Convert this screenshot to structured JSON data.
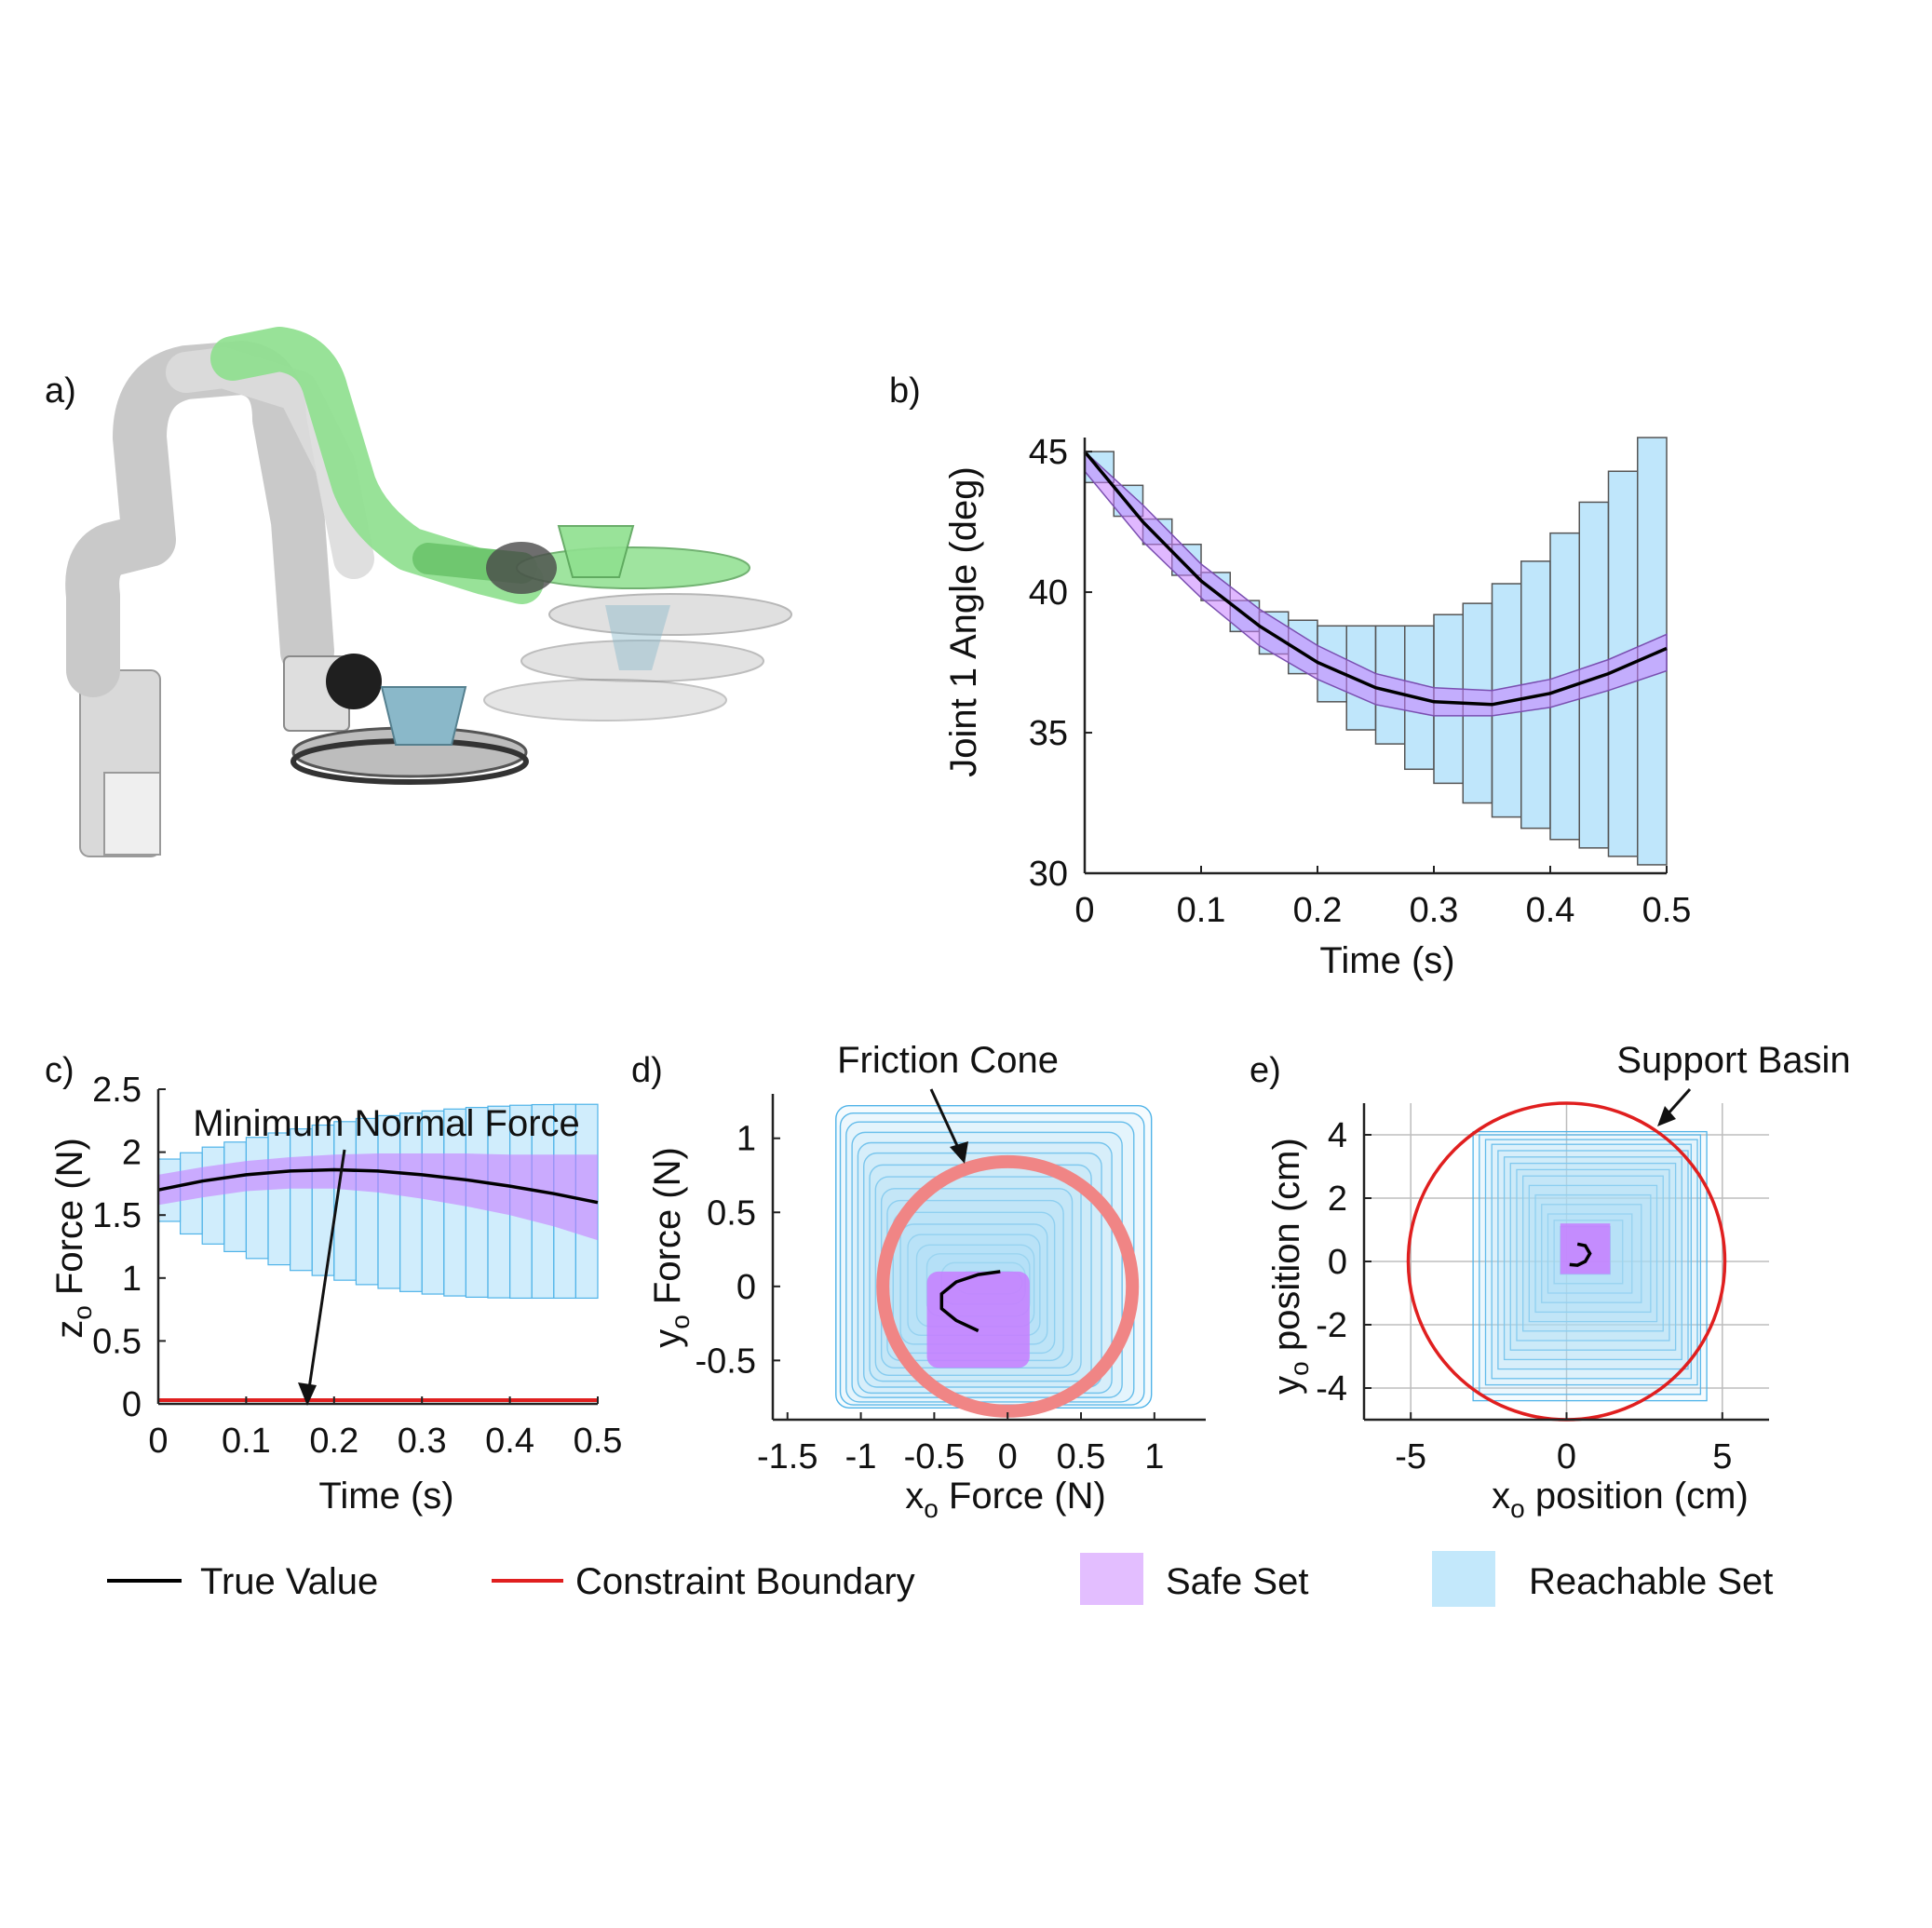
{
  "panel_labels": {
    "a": "a)",
    "b": "b)",
    "c": "c)",
    "d": "d)",
    "e": "e)"
  },
  "colors": {
    "true_value": "#000000",
    "constraint": "#e01f1f",
    "constraint_soft": "#f08585",
    "safe": "#c77dff",
    "reachable": "#a9defa",
    "reachable_edge": "#4fb3e8",
    "robot_gray": "#d4d4d4",
    "robot_green": "#8fe08f",
    "cup_blue": "#8ab8c9"
  },
  "legend": {
    "true_value": "True Value",
    "constraint": "Constraint Boundary",
    "safe": "Safe Set",
    "reachable": "Reachable Set"
  },
  "chart_data": [
    {
      "panel": "b",
      "type": "line",
      "xlabel": "Time (s)",
      "ylabel": "Joint 1 Angle (deg)",
      "xlim": [
        0,
        0.5
      ],
      "ylim": [
        30,
        45.5
      ],
      "xticks": [
        0,
        0.1,
        0.2,
        0.3,
        0.4,
        0.5
      ],
      "yticks": [
        30,
        35,
        40,
        45
      ],
      "true_value": {
        "x": [
          0,
          0.05,
          0.1,
          0.15,
          0.2,
          0.25,
          0.3,
          0.35,
          0.4,
          0.45,
          0.5
        ],
        "y": [
          45,
          42.5,
          40.4,
          38.8,
          37.5,
          36.6,
          36.1,
          36.0,
          36.4,
          37.1,
          38.0
        ]
      },
      "reachable_boxes": [
        {
          "t0": 0.0,
          "t1": 0.025,
          "lo": 43.9,
          "hi": 45.0
        },
        {
          "t0": 0.025,
          "t1": 0.05,
          "lo": 42.7,
          "hi": 43.8
        },
        {
          "t0": 0.05,
          "t1": 0.075,
          "lo": 41.7,
          "hi": 42.6
        },
        {
          "t0": 0.075,
          "t1": 0.1,
          "lo": 40.6,
          "hi": 41.7
        },
        {
          "t0": 0.1,
          "t1": 0.125,
          "lo": 39.7,
          "hi": 40.7
        },
        {
          "t0": 0.125,
          "t1": 0.15,
          "lo": 38.6,
          "hi": 39.7
        },
        {
          "t0": 0.15,
          "t1": 0.175,
          "lo": 37.8,
          "hi": 39.3
        },
        {
          "t0": 0.175,
          "t1": 0.2,
          "lo": 37.1,
          "hi": 39.0
        },
        {
          "t0": 0.2,
          "t1": 0.225,
          "lo": 36.1,
          "hi": 38.8
        },
        {
          "t0": 0.225,
          "t1": 0.25,
          "lo": 35.1,
          "hi": 38.8
        },
        {
          "t0": 0.25,
          "t1": 0.275,
          "lo": 34.6,
          "hi": 38.8
        },
        {
          "t0": 0.275,
          "t1": 0.3,
          "lo": 33.7,
          "hi": 38.8
        },
        {
          "t0": 0.3,
          "t1": 0.325,
          "lo": 33.2,
          "hi": 39.2
        },
        {
          "t0": 0.325,
          "t1": 0.35,
          "lo": 32.5,
          "hi": 39.6
        },
        {
          "t0": 0.35,
          "t1": 0.375,
          "lo": 32.0,
          "hi": 40.3
        },
        {
          "t0": 0.375,
          "t1": 0.4,
          "lo": 31.6,
          "hi": 41.1
        },
        {
          "t0": 0.4,
          "t1": 0.425,
          "lo": 31.2,
          "hi": 42.1
        },
        {
          "t0": 0.425,
          "t1": 0.45,
          "lo": 30.9,
          "hi": 43.2
        },
        {
          "t0": 0.45,
          "t1": 0.475,
          "lo": 30.6,
          "hi": 44.3
        },
        {
          "t0": 0.475,
          "t1": 0.5,
          "lo": 30.3,
          "hi": 45.5
        }
      ],
      "safe_band": {
        "x": [
          0,
          0.05,
          0.1,
          0.15,
          0.2,
          0.25,
          0.3,
          0.35,
          0.4,
          0.45,
          0.5
        ],
        "lo": [
          44.3,
          41.8,
          39.8,
          38.1,
          36.9,
          36.0,
          35.6,
          35.6,
          35.9,
          36.5,
          37.2
        ],
        "hi": [
          45.0,
          43.1,
          41.0,
          39.4,
          38.1,
          37.1,
          36.6,
          36.5,
          36.9,
          37.6,
          38.5
        ]
      }
    },
    {
      "panel": "c",
      "type": "line",
      "xlabel": "Time (s)",
      "ylabel": "z",
      "ylabel_sub": "o",
      "ylabel_rest": " Force (N)",
      "xlim": [
        0,
        0.5
      ],
      "ylim": [
        0,
        2.5
      ],
      "xticks": [
        0,
        0.1,
        0.2,
        0.3,
        0.4,
        0.5
      ],
      "yticks": [
        0,
        0.5,
        1,
        1.5,
        2,
        2.5
      ],
      "annotation": "Minimum Normal Force",
      "constraint_y": 0,
      "true_value": {
        "x": [
          0,
          0.05,
          0.1,
          0.15,
          0.2,
          0.25,
          0.3,
          0.35,
          0.4,
          0.45,
          0.5
        ],
        "y": [
          1.7,
          1.77,
          1.82,
          1.85,
          1.86,
          1.85,
          1.82,
          1.78,
          1.73,
          1.67,
          1.6
        ]
      },
      "reachable_envelope": {
        "x": [
          0,
          0.05,
          0.1,
          0.15,
          0.2,
          0.25,
          0.3,
          0.35,
          0.4,
          0.45,
          0.5
        ],
        "lo": [
          1.5,
          1.3,
          1.18,
          1.08,
          1.0,
          0.93,
          0.88,
          0.85,
          0.84,
          0.84,
          0.84
        ],
        "hi": [
          1.92,
          2.02,
          2.1,
          2.17,
          2.23,
          2.28,
          2.32,
          2.35,
          2.37,
          2.38,
          2.38
        ]
      },
      "safe_band": {
        "x": [
          0,
          0.05,
          0.1,
          0.15,
          0.2,
          0.25,
          0.3,
          0.35,
          0.4,
          0.45,
          0.5
        ],
        "lo": [
          1.58,
          1.64,
          1.69,
          1.71,
          1.71,
          1.68,
          1.63,
          1.57,
          1.5,
          1.41,
          1.3
        ],
        "hi": [
          1.82,
          1.88,
          1.93,
          1.96,
          1.98,
          1.99,
          1.99,
          1.99,
          1.98,
          1.98,
          1.98
        ]
      },
      "box_count": 20
    },
    {
      "panel": "d",
      "type": "scatter",
      "xlabel": "x",
      "xlabel_sub": "o",
      "xlabel_rest": " Force (N)",
      "ylabel": "y",
      "ylabel_sub": "o",
      "ylabel_rest": " Force (N)",
      "xlim": [
        -1.6,
        1.35
      ],
      "ylim": [
        -0.9,
        1.3
      ],
      "xticks": [
        -1.5,
        -1,
        -0.5,
        0,
        0.5,
        1
      ],
      "yticks": [
        -0.5,
        0,
        0.5,
        1
      ],
      "annotation": "Friction Cone",
      "constraint_circle": {
        "cx": 0,
        "cy": 0,
        "r": 0.85
      },
      "true_value": {
        "x": [
          -0.05,
          -0.2,
          -0.35,
          -0.45,
          -0.45,
          -0.35,
          -0.2
        ],
        "y": [
          0.1,
          0.08,
          0.03,
          -0.05,
          -0.15,
          -0.23,
          -0.3
        ]
      },
      "safe_region": {
        "x0": -0.55,
        "x1": 0.15,
        "y0": -0.55,
        "y1": 0.1
      },
      "reachable_sets": [
        {
          "x0": -0.35,
          "x1": 0.1,
          "y0": -0.05,
          "y1": 0.1
        },
        {
          "x0": -0.45,
          "x1": 0.12,
          "y0": -0.12,
          "y1": 0.16
        },
        {
          "x0": -0.55,
          "x1": 0.15,
          "y0": -0.2,
          "y1": 0.22
        },
        {
          "x0": -0.62,
          "x1": 0.18,
          "y0": -0.27,
          "y1": 0.28
        },
        {
          "x0": -0.68,
          "x1": 0.22,
          "y0": -0.33,
          "y1": 0.35
        },
        {
          "x0": -0.73,
          "x1": 0.27,
          "y0": -0.39,
          "y1": 0.42
        },
        {
          "x0": -0.78,
          "x1": 0.32,
          "y0": -0.45,
          "y1": 0.5
        },
        {
          "x0": -0.82,
          "x1": 0.38,
          "y0": -0.5,
          "y1": 0.58
        },
        {
          "x0": -0.86,
          "x1": 0.44,
          "y0": -0.55,
          "y1": 0.66
        },
        {
          "x0": -0.9,
          "x1": 0.5,
          "y0": -0.6,
          "y1": 0.74
        },
        {
          "x0": -0.94,
          "x1": 0.57,
          "y0": -0.64,
          "y1": 0.82
        },
        {
          "x0": -0.98,
          "x1": 0.64,
          "y0": -0.68,
          "y1": 0.9
        },
        {
          "x0": -1.02,
          "x1": 0.71,
          "y0": -0.72,
          "y1": 0.97
        },
        {
          "x0": -1.06,
          "x1": 0.78,
          "y0": -0.75,
          "y1": 1.04
        },
        {
          "x0": -1.1,
          "x1": 0.86,
          "y0": -0.78,
          "y1": 1.11
        },
        {
          "x0": -1.14,
          "x1": 0.93,
          "y0": -0.8,
          "y1": 1.17
        },
        {
          "x0": -1.17,
          "x1": 0.98,
          "y0": -0.82,
          "y1": 1.22
        }
      ]
    },
    {
      "panel": "e",
      "type": "scatter",
      "xlabel": "x",
      "xlabel_sub": "o",
      "xlabel_rest": " position (cm)",
      "ylabel": "y",
      "ylabel_sub": "o",
      "ylabel_rest": " position (cm)",
      "xlim": [
        -6.5,
        6.5
      ],
      "ylim": [
        -5,
        5
      ],
      "xticks": [
        -5,
        0,
        5
      ],
      "yticks": [
        -4,
        -2,
        0,
        2,
        4
      ],
      "grid": true,
      "annotation": "Support Basin",
      "constraint_circle": {
        "cx": 0,
        "cy": 0,
        "r": 5
      },
      "true_value": {
        "x": [
          0.1,
          0.35,
          0.6,
          0.75,
          0.6,
          0.35
        ],
        "y": [
          -0.1,
          -0.12,
          0.0,
          0.25,
          0.5,
          0.55
        ]
      },
      "safe_region": {
        "x0": -0.2,
        "x1": 1.4,
        "y0": -0.4,
        "y1": 1.2
      },
      "reachable_sets": [
        {
          "x0": -0.2,
          "x1": 1.4,
          "y0": -0.4,
          "y1": 1.1
        },
        {
          "x0": -0.4,
          "x1": 1.8,
          "y0": -0.7,
          "y1": 1.3
        },
        {
          "x0": -0.6,
          "x1": 2.1,
          "y0": -1.0,
          "y1": 1.5
        },
        {
          "x0": -0.8,
          "x1": 2.4,
          "y0": -1.3,
          "y1": 1.8
        },
        {
          "x0": -1.0,
          "x1": 2.7,
          "y0": -1.6,
          "y1": 2.1
        },
        {
          "x0": -1.2,
          "x1": 2.9,
          "y0": -1.9,
          "y1": 2.4
        },
        {
          "x0": -1.4,
          "x1": 3.1,
          "y0": -2.2,
          "y1": 2.7
        },
        {
          "x0": -1.6,
          "x1": 3.3,
          "y0": -2.5,
          "y1": 2.9
        },
        {
          "x0": -1.8,
          "x1": 3.5,
          "y0": -2.8,
          "y1": 3.1
        },
        {
          "x0": -2.0,
          "x1": 3.7,
          "y0": -3.1,
          "y1": 3.3
        },
        {
          "x0": -2.2,
          "x1": 3.9,
          "y0": -3.4,
          "y1": 3.5
        },
        {
          "x0": -2.4,
          "x1": 4.0,
          "y0": -3.7,
          "y1": 3.7
        },
        {
          "x0": -2.6,
          "x1": 4.2,
          "y0": -3.9,
          "y1": 3.85
        },
        {
          "x0": -2.8,
          "x1": 4.3,
          "y0": -4.2,
          "y1": 4.0
        },
        {
          "x0": -3.0,
          "x1": 4.5,
          "y0": -4.4,
          "y1": 4.1
        }
      ]
    }
  ]
}
